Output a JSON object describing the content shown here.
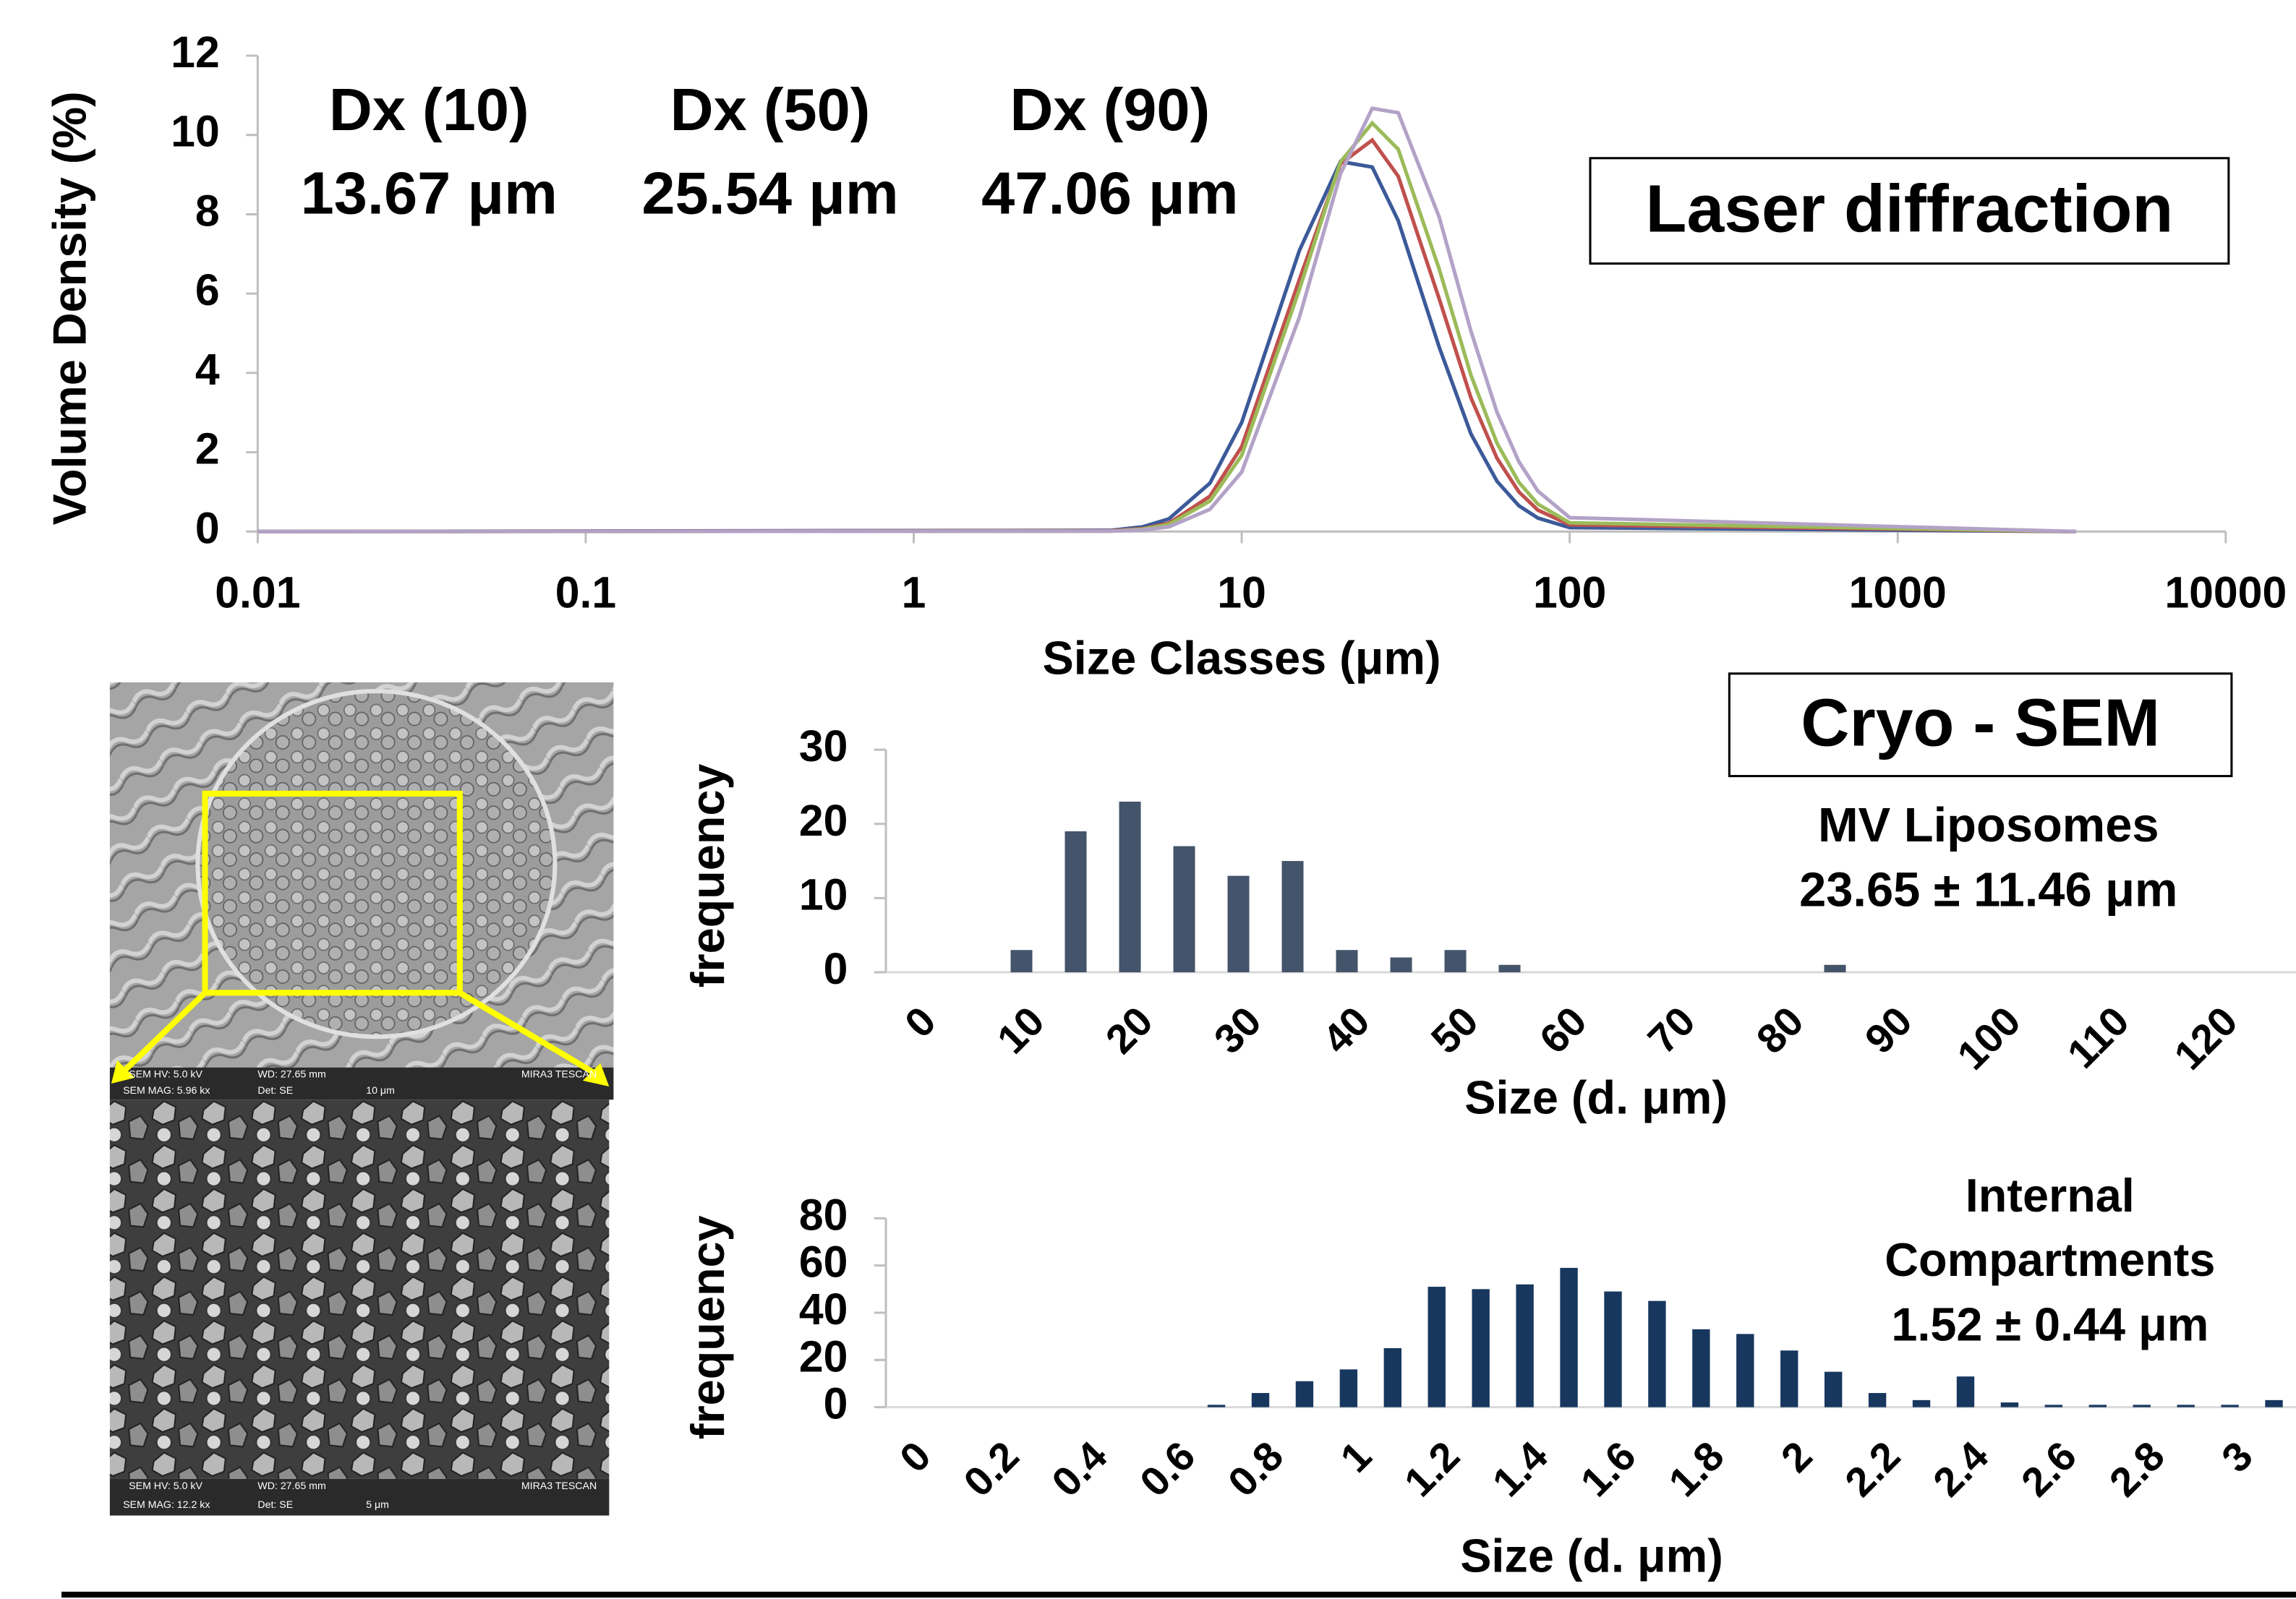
{
  "chart_data": [
    {
      "type": "line",
      "xscale": "log",
      "xlabel": "Size Classes (μm)",
      "ylabel": "Volume Density (%)",
      "annotations": [
        "Dx (10)",
        "13.67 μm",
        "Dx (50)",
        "25.54 μm",
        "Dx (90)",
        "47.06 μm"
      ],
      "boxed_label": "Laser diffraction",
      "x": [
        0.01,
        4,
        5,
        6,
        8,
        10,
        15,
        20,
        25,
        30,
        40,
        50,
        60,
        70,
        80,
        100,
        3500
      ],
      "xlim": [
        0.01,
        10000
      ],
      "xticks": [
        0.01,
        0.1,
        1,
        10,
        100,
        1000,
        10000
      ],
      "ylim": [
        0,
        12
      ],
      "yticks": [
        0,
        2,
        4,
        6,
        8,
        10,
        12
      ],
      "series": [
        {
          "color": "#3c5a99",
          "values": [
            0,
            0.03,
            0.12,
            0.32,
            1.22,
            2.75,
            7.09,
            9.33,
            9.19,
            7.84,
            4.65,
            2.46,
            1.27,
            0.65,
            0.34,
            0.1,
            0
          ]
        },
        {
          "color": "#c0504d",
          "values": [
            0,
            0.02,
            0.07,
            0.21,
            0.89,
            2.14,
            6.36,
            9.27,
            9.87,
            8.96,
            5.87,
            3.37,
            1.85,
            1.0,
            0.54,
            0.17,
            0
          ]
        },
        {
          "color": "#9bbb59",
          "values": [
            0,
            0.01,
            0.06,
            0.18,
            0.77,
            1.92,
            6.11,
            9.32,
            10.3,
            9.64,
            6.62,
            3.94,
            2.23,
            1.24,
            0.69,
            0.22,
            0
          ]
        },
        {
          "color": "#b3a2c7",
          "values": [
            0,
            0.01,
            0.04,
            0.12,
            0.56,
            1.5,
            5.41,
            9.02,
            10.67,
            10.56,
            7.93,
            5.05,
            3.01,
            1.76,
            1.02,
            0.35,
            0
          ]
        }
      ]
    },
    {
      "type": "bar",
      "boxed_label": "Cryo - SEM",
      "annotations": [
        "MV Liposomes",
        "23.65 ± 11.46 μm"
      ],
      "xlabel": "Size (d. μm)",
      "ylabel": "frequency",
      "categories": [
        "0",
        null,
        "10",
        null,
        "20",
        null,
        "30",
        null,
        "40",
        null,
        "50",
        null,
        "60",
        null,
        "70",
        null,
        "80",
        null,
        "90",
        null,
        "100",
        null,
        "110",
        null,
        "120",
        null
      ],
      "values": [
        0,
        0,
        3,
        19,
        23,
        17,
        13,
        15,
        3,
        2,
        3,
        1,
        0,
        0,
        0,
        0,
        0,
        1,
        0,
        0,
        0,
        0,
        0,
        0,
        0,
        0
      ],
      "color": "#44546a",
      "ylim": [
        0,
        30
      ],
      "yticks": [
        0,
        10,
        20,
        30
      ]
    },
    {
      "type": "bar",
      "annotations": [
        "Internal",
        "Compartments",
        "1.52 ± 0.44 μm"
      ],
      "xlabel": "Size (d. μm)",
      "ylabel": "frequency",
      "categories": [
        "0",
        null,
        "0.2",
        null,
        "0.4",
        null,
        "0.6",
        null,
        "0.8",
        null,
        "1",
        null,
        "1.2",
        null,
        "1.4",
        null,
        "1.6",
        null,
        "1.8",
        null,
        "2",
        null,
        "2.2",
        null,
        "2.4",
        null,
        "2.6",
        null,
        "2.8",
        null,
        "3",
        null
      ],
      "values": [
        0,
        0,
        0,
        0,
        0,
        0,
        0,
        1,
        6,
        11,
        16,
        25,
        51,
        50,
        52,
        59,
        49,
        45,
        33,
        31,
        24,
        15,
        6,
        3,
        13,
        2,
        1,
        1,
        1,
        1,
        1,
        3
      ],
      "color": "#17375e",
      "ylim": [
        0,
        80
      ],
      "yticks": [
        0,
        20,
        40,
        60,
        80
      ]
    }
  ],
  "sem_images": [
    {
      "labels": [
        "SEM HV: 5.0 kV",
        "WD: 27.65 mm",
        "MIRA3 TESCAN",
        "SEM MAG: 5.96 kx",
        "Det: SE",
        "10 μm"
      ]
    },
    {
      "labels": [
        "SEM HV: 5.0 kV",
        "WD: 27.65 mm",
        "MIRA3 TESCAN",
        "SEM MAG: 12.2 kx",
        "Det: SE",
        "5 μm"
      ]
    }
  ]
}
